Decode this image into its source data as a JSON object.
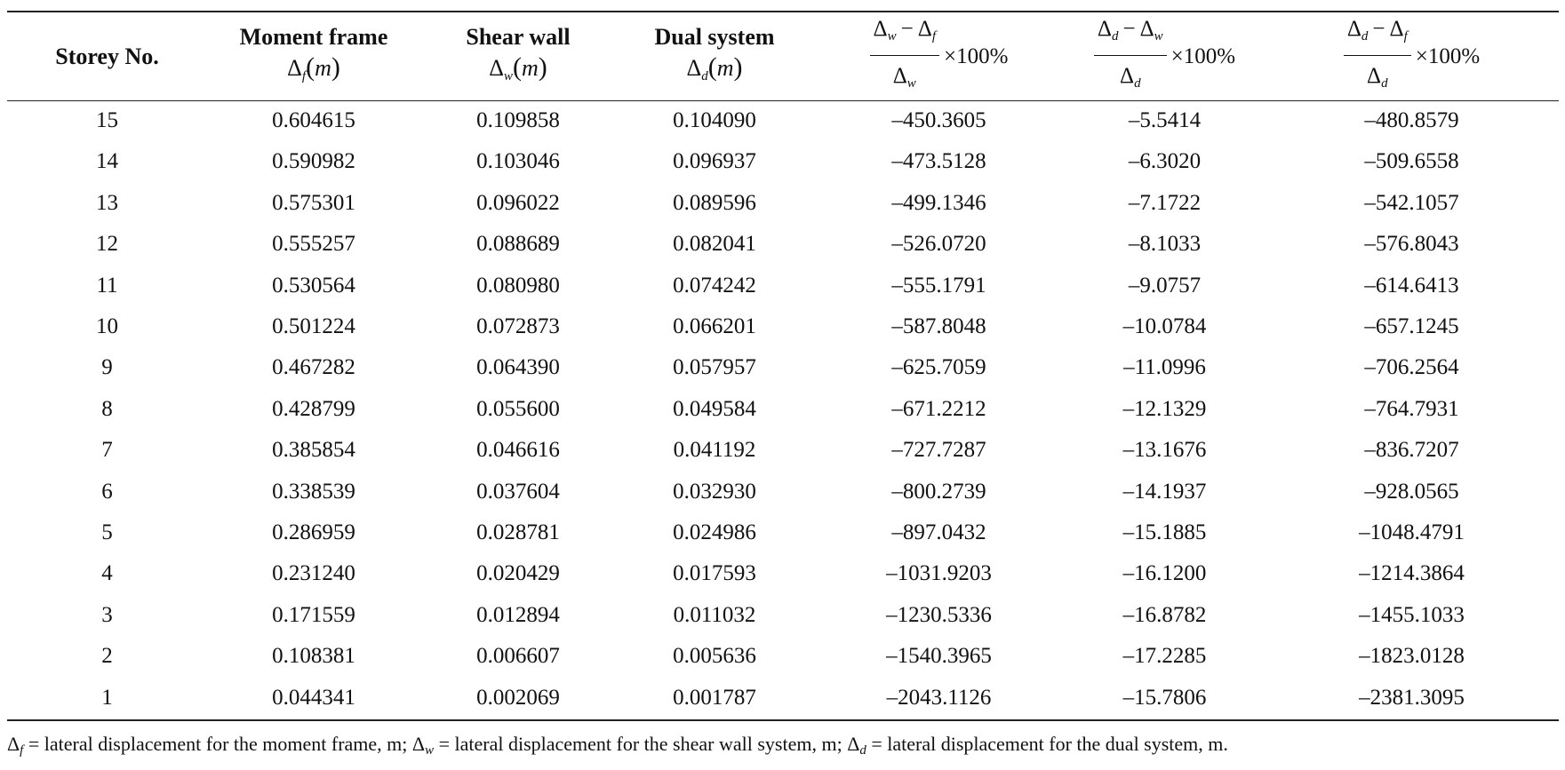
{
  "table": {
    "headers": [
      {
        "bold": "Storey No."
      },
      {
        "bold": "Moment frame",
        "symbol": "Δ",
        "sub": "f",
        "unit": "m"
      },
      {
        "bold": "Shear wall",
        "symbol": "Δ",
        "sub": "w",
        "unit": "m"
      },
      {
        "bold": "Dual system",
        "symbol": "Δ",
        "sub": "d",
        "unit": "m"
      },
      {
        "num_a": "Δ",
        "num_a_sub": "w",
        "minus": "−",
        "num_b": "Δ",
        "num_b_sub": "f",
        "den": "Δ",
        "den_sub": "w",
        "suffix": "×100%"
      },
      {
        "num_a": "Δ",
        "num_a_sub": "d",
        "minus": "−",
        "num_b": "Δ",
        "num_b_sub": "w",
        "den": "Δ",
        "den_sub": "d",
        "suffix": "×100%"
      },
      {
        "num_a": "Δ",
        "num_a_sub": "d",
        "minus": "−",
        "num_b": "Δ",
        "num_b_sub": "f",
        "den": "Δ",
        "den_sub": "d",
        "suffix": "×100%"
      }
    ],
    "rows": [
      [
        "15",
        "0.604615",
        "0.109858",
        "0.104090",
        "–450.3605",
        "–5.5414",
        "–480.8579"
      ],
      [
        "14",
        "0.590982",
        "0.103046",
        "0.096937",
        "–473.5128",
        "–6.3020",
        "–509.6558"
      ],
      [
        "13",
        "0.575301",
        "0.096022",
        "0.089596",
        "–499.1346",
        "–7.1722",
        "–542.1057"
      ],
      [
        "12",
        "0.555257",
        "0.088689",
        "0.082041",
        "–526.0720",
        "–8.1033",
        "–576.8043"
      ],
      [
        "11",
        "0.530564",
        "0.080980",
        "0.074242",
        "–555.1791",
        "–9.0757",
        "–614.6413"
      ],
      [
        "10",
        "0.501224",
        "0.072873",
        "0.066201",
        "–587.8048",
        "–10.0784",
        "–657.1245"
      ],
      [
        "9",
        "0.467282",
        "0.064390",
        "0.057957",
        "–625.7059",
        "–11.0996",
        "–706.2564"
      ],
      [
        "8",
        "0.428799",
        "0.055600",
        "0.049584",
        "–671.2212",
        "–12.1329",
        "–764.7931"
      ],
      [
        "7",
        "0.385854",
        "0.046616",
        "0.041192",
        "–727.7287",
        "–13.1676",
        "–836.7207"
      ],
      [
        "6",
        "0.338539",
        "0.037604",
        "0.032930",
        "–800.2739",
        "–14.1937",
        "–928.0565"
      ],
      [
        "5",
        "0.286959",
        "0.028781",
        "0.024986",
        "–897.0432",
        "–15.1885",
        "–1048.4791"
      ],
      [
        "4",
        "0.231240",
        "0.020429",
        "0.017593",
        "–1031.9203",
        "–16.1200",
        "–1214.3864"
      ],
      [
        "3",
        "0.171559",
        "0.012894",
        "0.011032",
        "–1230.5336",
        "–16.8782",
        "–1455.1033"
      ],
      [
        "2",
        "0.108381",
        "0.006607",
        "0.005636",
        "–1540.3965",
        "–17.2285",
        "–1823.0128"
      ],
      [
        "1",
        "0.044341",
        "0.002069",
        "0.001787",
        "–2043.1126",
        "–15.7806",
        "–2381.3095"
      ]
    ]
  },
  "footnote": {
    "parts": [
      {
        "sym": "Δ",
        "sub": "f",
        "text": " = lateral displacement for the moment frame, m; "
      },
      {
        "sym": "Δ",
        "sub": "w",
        "text": " = lateral displacement for the shear wall system, m; "
      },
      {
        "sym": "Δ",
        "sub": "d",
        "text": " = lateral displacement for the dual system, m."
      }
    ]
  }
}
